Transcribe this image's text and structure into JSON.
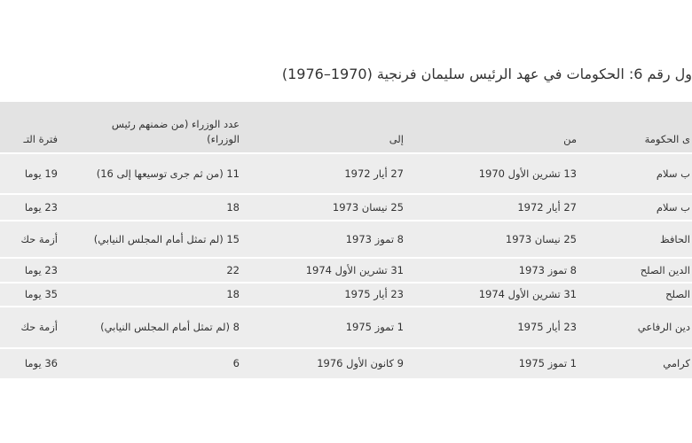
{
  "title": "ول رقم 6: الحكومات في عهد الرئيس سليمان فرنجية (1970–1976)",
  "table": {
    "headers": [
      "ى الحكومة",
      "من",
      "إلى",
      "عدد الوزراء (من ضمنهم رئيس الوزراء)",
      "فترة التـ"
    ],
    "rows": [
      [
        "ب سلام",
        "13 تشرين الأول 1970",
        "27 أيار 1972",
        "11 (من ثم جرى توسيعها إلى 16)",
        "19 يوما"
      ],
      [
        "ب سلام",
        "27 أيار 1972",
        "25 نيسان 1973",
        "18",
        "23 يوما"
      ],
      [
        "الحافظ",
        "25 نيسان 1973",
        "8 تموز 1973",
        "15 (لم تمثل أمام المجلس النيابي)",
        "أزمة حك"
      ],
      [
        "الدين الصلح",
        "8 تموز 1973",
        "31 تشرين الأول 1974",
        "22",
        "23 يوما"
      ],
      [
        "الصلح",
        "31 تشرين الأول 1974",
        "23 أيار 1975",
        "18",
        "35 يوما"
      ],
      [
        "دين الرفاعي",
        "23 أيار 1975",
        "1 تموز 1975",
        "8 (لم تمثل أمام المجلس النيابي)",
        "أزمة حك"
      ],
      [
        "كرامي",
        "1 تموز 1975",
        "9 كانون الأول 1976",
        "6",
        "36 يوما"
      ]
    ]
  }
}
